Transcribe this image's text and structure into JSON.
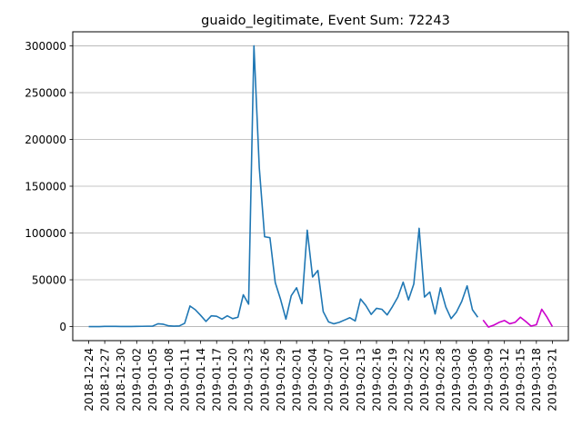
{
  "chart_data": {
    "type": "line",
    "title": "guaido_legitimate, Event Sum: 72243",
    "xlabel": "",
    "ylabel": "",
    "ylim": [
      -15000,
      315000
    ],
    "yticks": [
      0,
      50000,
      100000,
      150000,
      200000,
      250000,
      300000
    ],
    "grid": "horizontal",
    "xlim": [
      "2018-12-21",
      "2019-03-24"
    ],
    "xticks": [
      "2018-12-24",
      "2018-12-27",
      "2018-12-30",
      "2019-01-02",
      "2019-01-05",
      "2019-01-08",
      "2019-01-11",
      "2019-01-14",
      "2019-01-17",
      "2019-01-20",
      "2019-01-23",
      "2019-01-26",
      "2019-01-29",
      "2019-02-01",
      "2019-02-04",
      "2019-02-07",
      "2019-02-10",
      "2019-02-13",
      "2019-02-16",
      "2019-02-19",
      "2019-02-22",
      "2019-02-25",
      "2019-02-28",
      "2019-03-03",
      "2019-03-06",
      "2019-03-09",
      "2019-03-12",
      "2019-03-15",
      "2019-03-18",
      "2019-03-21"
    ],
    "series": [
      {
        "color": "#1f77b4",
        "x": [
          "2018-12-24",
          "2018-12-25",
          "2018-12-26",
          "2018-12-27",
          "2018-12-28",
          "2018-12-29",
          "2018-12-30",
          "2018-12-31",
          "2019-01-01",
          "2019-01-02",
          "2019-01-03",
          "2019-01-04",
          "2019-01-05",
          "2019-01-06",
          "2019-01-07",
          "2019-01-08",
          "2019-01-09",
          "2019-01-10",
          "2019-01-11",
          "2019-01-12",
          "2019-01-13",
          "2019-01-14",
          "2019-01-15",
          "2019-01-16",
          "2019-01-17",
          "2019-01-18",
          "2019-01-19",
          "2019-01-20",
          "2019-01-21",
          "2019-01-22",
          "2019-01-23",
          "2019-01-24",
          "2019-01-25",
          "2019-01-26",
          "2019-01-27",
          "2019-01-28",
          "2019-01-29",
          "2019-01-30",
          "2019-01-31",
          "2019-02-01",
          "2019-02-02",
          "2019-02-03",
          "2019-02-04",
          "2019-02-05",
          "2019-02-06",
          "2019-02-07",
          "2019-02-08",
          "2019-02-09",
          "2019-02-10",
          "2019-02-11",
          "2019-02-12",
          "2019-02-13",
          "2019-02-14",
          "2019-02-15",
          "2019-02-16",
          "2019-02-17",
          "2019-02-18",
          "2019-02-19",
          "2019-02-20",
          "2019-02-21",
          "2019-02-22",
          "2019-02-23",
          "2019-02-24",
          "2019-02-25",
          "2019-02-26",
          "2019-02-27",
          "2019-02-28",
          "2019-03-01",
          "2019-03-02",
          "2019-03-03",
          "2019-03-04",
          "2019-03-05",
          "2019-03-06",
          "2019-03-07"
        ],
        "values": [
          0,
          0,
          0,
          200,
          300,
          200,
          100,
          100,
          100,
          200,
          300,
          400,
          500,
          3000,
          2500,
          800,
          500,
          700,
          3500,
          22000,
          18000,
          12000,
          5500,
          11500,
          11000,
          8000,
          11500,
          8500,
          10000,
          34000,
          24000,
          300000,
          170000,
          96000,
          95000,
          47000,
          29000,
          8000,
          33000,
          41500,
          24500,
          103000,
          53000,
          60000,
          16000,
          5000,
          3000,
          4500,
          7000,
          9500,
          6000,
          29500,
          22500,
          13000,
          19500,
          18500,
          12500,
          21500,
          31500,
          47500,
          28500,
          45500,
          105000,
          31500,
          37000,
          13500,
          41500,
          21000,
          8500,
          15500,
          27000,
          43500,
          18000,
          10000
        ]
      },
      {
        "color": "#cc00cc",
        "x": [
          "2019-03-08",
          "2019-03-09",
          "2019-03-10",
          "2019-03-11",
          "2019-03-12",
          "2019-03-13",
          "2019-03-14",
          "2019-03-15",
          "2019-03-16",
          "2019-03-17",
          "2019-03-18",
          "2019-03-19",
          "2019-03-20",
          "2019-03-21"
        ],
        "values": [
          7000,
          -500,
          1500,
          4500,
          6500,
          3000,
          4500,
          10000,
          5500,
          500,
          2000,
          18500,
          10000,
          0
        ]
      }
    ]
  }
}
